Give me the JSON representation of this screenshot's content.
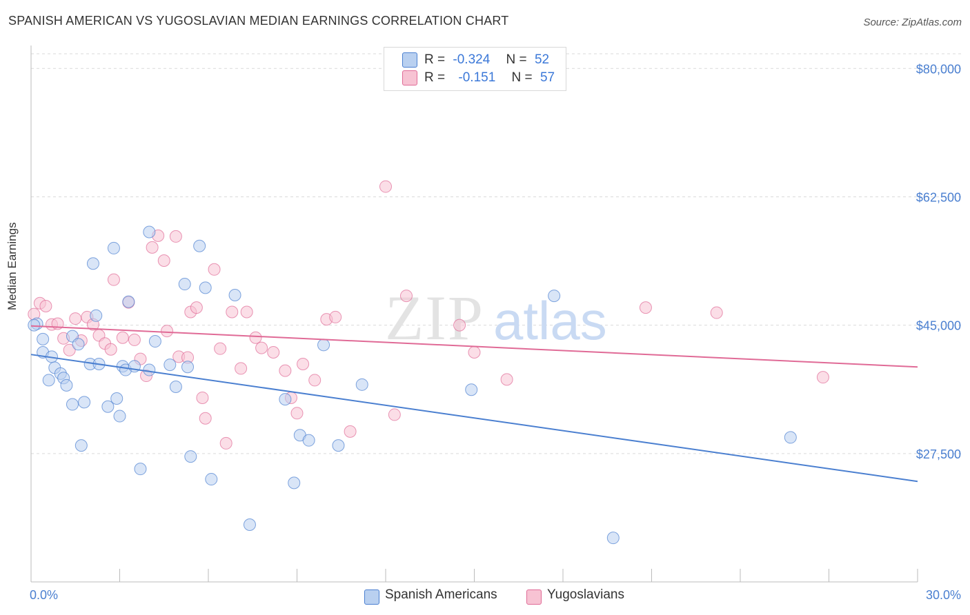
{
  "title": "SPANISH AMERICAN VS YUGOSLAVIAN MEDIAN EARNINGS CORRELATION CHART",
  "source": "Source: ZipAtlas.com",
  "colors": {
    "blue": "#4a7fd0",
    "blue_fill": "#b9d0f0",
    "pink": "#e06a96",
    "pink_fill": "#f7c3d3",
    "grid": "#d9d9d9"
  },
  "legend": {
    "r_label": "R =",
    "n_label": "N =",
    "blue_r": "-0.324",
    "blue_n": "52",
    "pink_r": "-0.151",
    "pink_n": "57"
  },
  "chart_data": {
    "type": "scatter",
    "title": "SPANISH AMERICAN VS YUGOSLAVIAN MEDIAN EARNINGS CORRELATION CHART",
    "xlabel": "",
    "ylabel": "Median Earnings",
    "xlim": [
      0,
      30
    ],
    "ylim": [
      10000,
      82000
    ],
    "x_tick_labels": [
      "0.0%",
      "30.0%"
    ],
    "y_ticks": [
      27500,
      45000,
      62500,
      80000
    ],
    "y_tick_labels": [
      "$27,500",
      "$45,000",
      "$62,500",
      "$80,000"
    ],
    "grid": true,
    "legend_position": "top-center",
    "watermark": "ZIPatlas",
    "series": [
      {
        "name": "Spanish Americans",
        "color": "#4a7fd0",
        "trend": {
          "x": [
            0,
            30
          ],
          "y": [
            41000,
            23700
          ]
        },
        "points": [
          [
            0.2,
            45200
          ],
          [
            0.4,
            43100
          ],
          [
            0.4,
            41300
          ],
          [
            0.6,
            37500
          ],
          [
            0.7,
            40700
          ],
          [
            0.8,
            39200
          ],
          [
            1.0,
            38400
          ],
          [
            1.1,
            37800
          ],
          [
            1.2,
            36800
          ],
          [
            1.4,
            43500
          ],
          [
            1.4,
            34200
          ],
          [
            1.6,
            42400
          ],
          [
            1.7,
            28600
          ],
          [
            1.8,
            34500
          ],
          [
            2.0,
            39700
          ],
          [
            2.1,
            53400
          ],
          [
            2.2,
            46300
          ],
          [
            2.3,
            39700
          ],
          [
            2.6,
            33900
          ],
          [
            2.8,
            55500
          ],
          [
            2.9,
            35000
          ],
          [
            3.0,
            32600
          ],
          [
            3.1,
            39400
          ],
          [
            3.2,
            38900
          ],
          [
            3.3,
            48200
          ],
          [
            3.5,
            39400
          ],
          [
            3.7,
            25400
          ],
          [
            4.0,
            38900
          ],
          [
            4.0,
            57700
          ],
          [
            4.2,
            42800
          ],
          [
            4.7,
            39600
          ],
          [
            4.9,
            36600
          ],
          [
            5.2,
            50600
          ],
          [
            5.3,
            39300
          ],
          [
            5.4,
            27100
          ],
          [
            5.7,
            55800
          ],
          [
            5.9,
            50100
          ],
          [
            6.1,
            24000
          ],
          [
            6.9,
            49100
          ],
          [
            7.4,
            17800
          ],
          [
            8.6,
            34900
          ],
          [
            8.9,
            23500
          ],
          [
            9.1,
            30000
          ],
          [
            9.4,
            29300
          ],
          [
            9.9,
            42300
          ],
          [
            10.4,
            28600
          ],
          [
            11.2,
            36900
          ],
          [
            14.9,
            36200
          ],
          [
            17.7,
            49000
          ],
          [
            19.7,
            16000
          ],
          [
            25.7,
            29700
          ],
          [
            0.1,
            45000
          ]
        ]
      },
      {
        "name": "Yugoslavians",
        "color": "#e06a96",
        "trend": {
          "x": [
            0,
            30
          ],
          "y": [
            44900,
            39300
          ]
        },
        "points": [
          [
            0.1,
            46500
          ],
          [
            0.3,
            48000
          ],
          [
            0.5,
            47600
          ],
          [
            0.7,
            45100
          ],
          [
            0.9,
            45200
          ],
          [
            1.1,
            43200
          ],
          [
            1.3,
            41600
          ],
          [
            1.5,
            45900
          ],
          [
            1.7,
            42900
          ],
          [
            1.9,
            46100
          ],
          [
            2.1,
            45100
          ],
          [
            2.3,
            43600
          ],
          [
            2.5,
            42500
          ],
          [
            2.7,
            41700
          ],
          [
            2.8,
            51200
          ],
          [
            3.1,
            43300
          ],
          [
            3.3,
            48100
          ],
          [
            3.5,
            43000
          ],
          [
            3.7,
            40400
          ],
          [
            3.9,
            38100
          ],
          [
            4.1,
            55600
          ],
          [
            4.3,
            57200
          ],
          [
            4.5,
            53800
          ],
          [
            4.6,
            44200
          ],
          [
            4.9,
            57100
          ],
          [
            5.0,
            40700
          ],
          [
            5.3,
            40600
          ],
          [
            5.4,
            46800
          ],
          [
            5.6,
            47400
          ],
          [
            5.8,
            35100
          ],
          [
            5.9,
            32300
          ],
          [
            6.2,
            52600
          ],
          [
            6.4,
            41800
          ],
          [
            6.6,
            28900
          ],
          [
            6.8,
            46800
          ],
          [
            7.1,
            39100
          ],
          [
            7.3,
            46800
          ],
          [
            7.6,
            43300
          ],
          [
            7.8,
            41900
          ],
          [
            8.2,
            41300
          ],
          [
            8.6,
            38800
          ],
          [
            8.8,
            35100
          ],
          [
            9.0,
            33000
          ],
          [
            9.2,
            39700
          ],
          [
            9.6,
            37500
          ],
          [
            10.0,
            45800
          ],
          [
            10.3,
            46100
          ],
          [
            10.8,
            30500
          ],
          [
            12.0,
            63900
          ],
          [
            12.3,
            32800
          ],
          [
            12.7,
            49000
          ],
          [
            14.5,
            45000
          ],
          [
            15.0,
            41300
          ],
          [
            16.1,
            37600
          ],
          [
            20.8,
            47400
          ],
          [
            23.2,
            46700
          ],
          [
            26.8,
            37900
          ]
        ]
      }
    ]
  }
}
